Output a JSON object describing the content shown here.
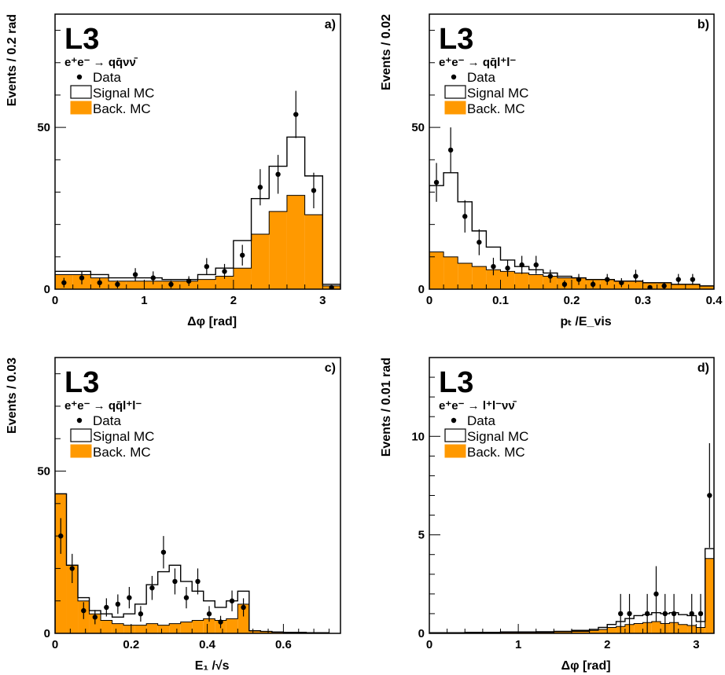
{
  "colors": {
    "background": "#ffffff",
    "frame": "#000000",
    "background_mc_fill": "#ff9900",
    "signal_mc_line": "#000000",
    "data_marker": "#000000"
  },
  "chart_data": [
    {
      "panel": "a)",
      "type": "histogram",
      "experiment": "L3",
      "reaction": "e⁺e⁻ → qq̄νν̄",
      "xlabel": "Δφ [rad]",
      "ylabel": "Events / 0.2 rad",
      "xlim": [
        0,
        3.2
      ],
      "ylim": [
        0,
        85
      ],
      "xticks": [
        0,
        1,
        2,
        3
      ],
      "yticks": [
        0,
        50
      ],
      "legend": [
        {
          "key": "data",
          "label": "Data"
        },
        {
          "key": "signal",
          "label": "Signal MC"
        },
        {
          "key": "background",
          "label": "Back. MC"
        }
      ],
      "bin_edges": [
        0,
        0.2,
        0.4,
        0.6,
        0.8,
        1.0,
        1.2,
        1.4,
        1.6,
        1.8,
        2.0,
        2.2,
        2.4,
        2.6,
        2.8,
        3.0,
        3.2
      ],
      "background_mc": [
        4.5,
        4.5,
        3.5,
        2.5,
        2.5,
        2.5,
        2.5,
        2.5,
        3,
        4,
        6.5,
        17,
        24,
        29,
        23,
        1
      ],
      "signal_mc": [
        5.5,
        5.5,
        4.5,
        3.5,
        3.5,
        3.5,
        3,
        3,
        4.5,
        6.5,
        15,
        28,
        38,
        47,
        35,
        1.5
      ],
      "data": [
        {
          "x": 0.1,
          "y": 2,
          "err": 1.5
        },
        {
          "x": 0.3,
          "y": 3.5,
          "err": 2
        },
        {
          "x": 0.5,
          "y": 2,
          "err": 1.5
        },
        {
          "x": 0.7,
          "y": 1.5,
          "err": 1.2
        },
        {
          "x": 0.9,
          "y": 4.5,
          "err": 2
        },
        {
          "x": 1.1,
          "y": 3.5,
          "err": 2
        },
        {
          "x": 1.3,
          "y": 1.5,
          "err": 1.2
        },
        {
          "x": 1.5,
          "y": 2.5,
          "err": 1.5
        },
        {
          "x": 1.7,
          "y": 7,
          "err": 2.6
        },
        {
          "x": 1.9,
          "y": 5.5,
          "err": 2.3
        },
        {
          "x": 2.1,
          "y": 10.5,
          "err": 3.2
        },
        {
          "x": 2.3,
          "y": 31.5,
          "err": 5.6
        },
        {
          "x": 2.5,
          "y": 35.5,
          "err": 6
        },
        {
          "x": 2.7,
          "y": 54,
          "err": 7.3
        },
        {
          "x": 2.9,
          "y": 30.5,
          "err": 5.5
        },
        {
          "x": 3.1,
          "y": 0.5,
          "err": 0.7
        }
      ]
    },
    {
      "panel": "b)",
      "type": "histogram",
      "experiment": "L3",
      "reaction": "e⁺e⁻ → qq̄l⁺l⁻",
      "xlabel": "pₜ /E_vis",
      "ylabel": "Events / 0.02",
      "xlim": [
        0,
        0.4
      ],
      "ylim": [
        0,
        85
      ],
      "xticks": [
        0,
        0.1,
        0.2,
        0.3,
        0.4
      ],
      "yticks": [
        0,
        50
      ],
      "legend": [
        {
          "key": "data",
          "label": "Data"
        },
        {
          "key": "signal",
          "label": "Signal MC"
        },
        {
          "key": "background",
          "label": "Back. MC"
        }
      ],
      "bin_edges": [
        0,
        0.02,
        0.04,
        0.06,
        0.08,
        0.1,
        0.12,
        0.14,
        0.16,
        0.18,
        0.2,
        0.22,
        0.24,
        0.26,
        0.28,
        0.3,
        0.32,
        0.34,
        0.36,
        0.38,
        0.4
      ],
      "background_mc": [
        11.5,
        10,
        8,
        7,
        6,
        5.5,
        5,
        4.5,
        4,
        3.5,
        3.5,
        3,
        3,
        2.5,
        2.5,
        2,
        2,
        1.5,
        1.5,
        1
      ],
      "signal_mc": [
        32,
        36,
        27,
        18,
        13,
        9,
        7,
        6,
        5,
        4,
        3.5,
        3,
        3,
        2.5,
        2.5,
        2,
        2,
        1.5,
        1.5,
        1
      ],
      "data": [
        {
          "x": 0.01,
          "y": 33,
          "err": 6
        },
        {
          "x": 0.03,
          "y": 43,
          "err": 7
        },
        {
          "x": 0.05,
          "y": 22.5,
          "err": 5
        },
        {
          "x": 0.07,
          "y": 14.5,
          "err": 4
        },
        {
          "x": 0.09,
          "y": 7,
          "err": 2.7
        },
        {
          "x": 0.11,
          "y": 6.5,
          "err": 2.6
        },
        {
          "x": 0.13,
          "y": 7.5,
          "err": 2.8
        },
        {
          "x": 0.15,
          "y": 7.5,
          "err": 2.8
        },
        {
          "x": 0.17,
          "y": 4,
          "err": 2
        },
        {
          "x": 0.19,
          "y": 1.5,
          "err": 1.2
        },
        {
          "x": 0.21,
          "y": 3,
          "err": 1.7
        },
        {
          "x": 0.23,
          "y": 1.5,
          "err": 1.2
        },
        {
          "x": 0.25,
          "y": 3,
          "err": 1.7
        },
        {
          "x": 0.27,
          "y": 2,
          "err": 1.4
        },
        {
          "x": 0.29,
          "y": 4,
          "err": 2
        },
        {
          "x": 0.31,
          "y": 0.5,
          "err": 0.7
        },
        {
          "x": 0.33,
          "y": 1,
          "err": 1
        },
        {
          "x": 0.35,
          "y": 3,
          "err": 1.7
        },
        {
          "x": 0.37,
          "y": 3,
          "err": 1.7
        }
      ]
    },
    {
      "panel": "c)",
      "type": "histogram",
      "experiment": "L3",
      "reaction": "e⁺e⁻ → qq̄l⁺l⁻",
      "xlabel": "E₁ /√s",
      "ylabel": "Events / 0.03",
      "xlim": [
        0,
        0.75
      ],
      "ylim": [
        0,
        85
      ],
      "xticks": [
        0,
        0.2,
        0.4,
        0.6
      ],
      "yticks": [
        0,
        50
      ],
      "legend": [
        {
          "key": "data",
          "label": "Data"
        },
        {
          "key": "signal",
          "label": "Signal MC"
        },
        {
          "key": "background",
          "label": "Back. MC"
        }
      ],
      "bin_edges": [
        0,
        0.03,
        0.06,
        0.09,
        0.12,
        0.15,
        0.18,
        0.21,
        0.24,
        0.27,
        0.3,
        0.33,
        0.36,
        0.39,
        0.42,
        0.45,
        0.48,
        0.51,
        0.54,
        0.57,
        0.6,
        0.63,
        0.66,
        0.69,
        0.72
      ],
      "background_mc": [
        43,
        21,
        10,
        6,
        4,
        3,
        2.5,
        2.5,
        3,
        2.5,
        3,
        3.5,
        4,
        4.5,
        4,
        4.5,
        9,
        0.8,
        0.6,
        0.4,
        0.3,
        0.3,
        0.2,
        0.2
      ],
      "signal_mc": [
        43,
        21,
        11,
        7,
        6,
        5,
        6,
        9,
        15,
        19,
        21,
        16,
        13,
        10,
        8,
        10,
        13,
        0.8,
        0.6,
        0.4,
        0.3,
        0.3,
        0.2,
        0.2
      ],
      "data": [
        {
          "x": 0.015,
          "y": 30,
          "err": 5.5
        },
        {
          "x": 0.045,
          "y": 20,
          "err": 4.5
        },
        {
          "x": 0.075,
          "y": 7,
          "err": 2.6
        },
        {
          "x": 0.105,
          "y": 5,
          "err": 2.2
        },
        {
          "x": 0.135,
          "y": 8,
          "err": 2.8
        },
        {
          "x": 0.165,
          "y": 9,
          "err": 3
        },
        {
          "x": 0.195,
          "y": 11,
          "err": 3.3
        },
        {
          "x": 0.225,
          "y": 6,
          "err": 2.4
        },
        {
          "x": 0.255,
          "y": 14,
          "err": 3.7
        },
        {
          "x": 0.285,
          "y": 25,
          "err": 5
        },
        {
          "x": 0.315,
          "y": 16,
          "err": 4
        },
        {
          "x": 0.345,
          "y": 11,
          "err": 3.3
        },
        {
          "x": 0.375,
          "y": 16,
          "err": 4
        },
        {
          "x": 0.405,
          "y": 6,
          "err": 2.4
        },
        {
          "x": 0.435,
          "y": 3.5,
          "err": 1.9
        },
        {
          "x": 0.465,
          "y": 10,
          "err": 3.2
        },
        {
          "x": 0.495,
          "y": 8,
          "err": 2.8
        }
      ]
    },
    {
      "panel": "d)",
      "type": "histogram",
      "experiment": "L3",
      "reaction": "e⁺e⁻ → l⁺l⁻νν̄",
      "xlabel": "Δφ [rad]",
      "ylabel": "Events / 0.01 rad",
      "xlim": [
        0,
        3.2
      ],
      "ylim": [
        0,
        14
      ],
      "xticks": [
        0,
        1,
        2,
        3
      ],
      "yticks": [
        0,
        5,
        10
      ],
      "legend": [
        {
          "key": "data",
          "label": "Data"
        },
        {
          "key": "signal",
          "label": "Signal MC"
        },
        {
          "key": "background",
          "label": "Back. MC"
        }
      ],
      "bin_edges": [
        0,
        0.2,
        0.4,
        0.6,
        0.8,
        1.0,
        1.2,
        1.4,
        1.6,
        1.8,
        1.9,
        2.0,
        2.1,
        2.2,
        2.3,
        2.4,
        2.5,
        2.6,
        2.7,
        2.8,
        2.9,
        3.0,
        3.1,
        3.2
      ],
      "background_mc": [
        0.02,
        0.02,
        0.03,
        0.05,
        0.05,
        0.05,
        0.05,
        0.08,
        0.1,
        0.15,
        0.2,
        0.3,
        0.35,
        0.45,
        0.5,
        0.55,
        0.6,
        0.5,
        0.55,
        0.45,
        0.4,
        0.3,
        3.8
      ],
      "signal_mc": [
        0.03,
        0.03,
        0.05,
        0.05,
        0.07,
        0.07,
        0.08,
        0.1,
        0.15,
        0.2,
        0.3,
        0.45,
        0.6,
        0.75,
        0.9,
        0.95,
        1.05,
        1.0,
        1.05,
        0.95,
        0.9,
        0.6,
        4.3
      ],
      "data": [
        {
          "x": 2.15,
          "y": 1,
          "err": 1
        },
        {
          "x": 2.25,
          "y": 1,
          "err": 1
        },
        {
          "x": 2.45,
          "y": 1,
          "err": 1
        },
        {
          "x": 2.55,
          "y": 2,
          "err": 1.41
        },
        {
          "x": 2.65,
          "y": 1,
          "err": 1
        },
        {
          "x": 2.75,
          "y": 1,
          "err": 1
        },
        {
          "x": 2.95,
          "y": 1,
          "err": 1
        },
        {
          "x": 3.05,
          "y": 1,
          "err": 1
        },
        {
          "x": 3.15,
          "y": 7,
          "err": 2.65
        }
      ]
    }
  ]
}
